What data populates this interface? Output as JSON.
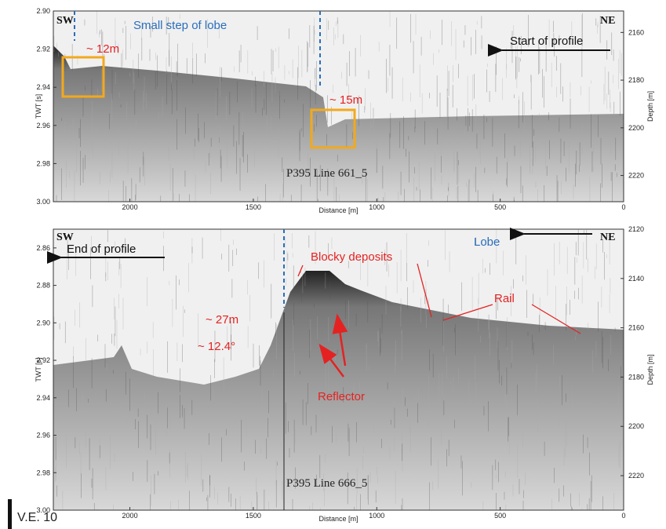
{
  "panels": [
    {
      "ylabel": "TWT [s]",
      "y2label": "Depth [m]",
      "xlabel": "Distance [m]",
      "ylim": [
        2.9,
        3.0
      ],
      "yticks": [
        {
          "value": 2.9,
          "label": "2.90"
        },
        {
          "value": 2.92,
          "label": "2.92"
        },
        {
          "value": 2.94,
          "label": "2.94"
        },
        {
          "value": 2.96,
          "label": "2.96"
        },
        {
          "value": 2.98,
          "label": "2.98"
        },
        {
          "value": 3.0,
          "label": "3.00"
        }
      ],
      "y2lim": [
        2151,
        2231
      ],
      "y2ticks": [
        2160,
        2180,
        2200,
        2220
      ],
      "xlim": [
        2310,
        0
      ],
      "xticks": [
        2000,
        1500,
        1000,
        500,
        0
      ],
      "labels": {
        "sw": "SW",
        "ne": "NE",
        "step": "Small step of lobe",
        "h1": "~ 12m",
        "h2": "~ 15m",
        "start": "Start of profile",
        "line": "P395 Line 661_5"
      }
    },
    {
      "ylabel": "TWT [s]",
      "y2label": "Depth [m]",
      "xlabel": "Distance [m]",
      "ylim": [
        2.85,
        3.0
      ],
      "yticks": [
        {
          "value": 2.86,
          "label": "2.86"
        },
        {
          "value": 2.88,
          "label": "2.88"
        },
        {
          "value": 2.9,
          "label": "2.90"
        },
        {
          "value": 2.92,
          "label": "2.92"
        },
        {
          "value": 2.94,
          "label": "2.94"
        },
        {
          "value": 2.96,
          "label": "2.96"
        },
        {
          "value": 2.98,
          "label": "2.98"
        },
        {
          "value": 3.0,
          "label": "3.00"
        }
      ],
      "y2lim": [
        2120,
        2234
      ],
      "y2ticks": [
        2120,
        2140,
        2160,
        2180,
        2200,
        2220
      ],
      "xlim": [
        2310,
        0
      ],
      "xticks": [
        2000,
        1500,
        1000,
        500,
        0
      ],
      "labels": {
        "sw": "SW",
        "ne": "NE",
        "end": "End of profile",
        "lobe": "Lobe",
        "blocky": "Blocky deposits",
        "rail": "Rail",
        "height": "~ 27m",
        "slope": "~ 12.4°",
        "reflector": "Reflector",
        "line": "P395 Line 666_5"
      }
    }
  ],
  "footer": {
    "ve": "V.E. 10"
  }
}
